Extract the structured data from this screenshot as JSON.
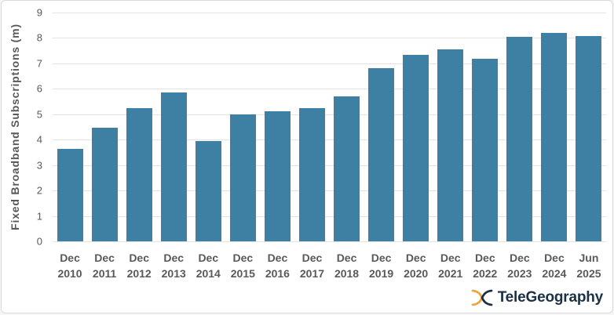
{
  "chart_data": {
    "type": "bar",
    "categories": [
      "Dec 2010",
      "Dec 2011",
      "Dec 2012",
      "Dec 2013",
      "Dec 2014",
      "Dec 2015",
      "Dec 2016",
      "Dec 2017",
      "Dec 2018",
      "Dec 2019",
      "Dec 2020",
      "Dec 2021",
      "Dec 2022",
      "Dec 2023",
      "Dec 2024",
      "Jun 2025"
    ],
    "values": [
      3.65,
      4.47,
      5.24,
      5.86,
      3.94,
      4.98,
      5.12,
      5.24,
      5.7,
      6.81,
      7.35,
      7.56,
      7.19,
      8.05,
      8.2,
      8.09
    ],
    "title": "",
    "xlabel": "",
    "ylabel": "Fixed Broadband Subscriptions (m)",
    "ylim": [
      0,
      9
    ],
    "ytick_step": 1,
    "grid": true,
    "legend": "none",
    "bar_color": "#3d80a4"
  },
  "colors": {
    "bar": "#3d80a4",
    "gridline": "#e3e3e3",
    "tick_label": "#595959",
    "axis_title": "#595959",
    "frame_border": "#d9d9d9",
    "background": "#ffffff",
    "logo_navy": "#1b3045",
    "logo_orange": "#eca43c"
  },
  "branding": {
    "logo_text": "TeleGeography",
    "logo_icon": "telegeography-x-icon"
  }
}
